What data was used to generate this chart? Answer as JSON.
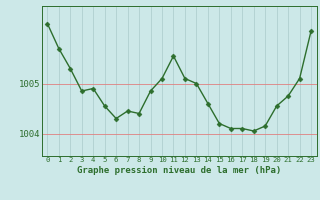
{
  "x": [
    0,
    1,
    2,
    3,
    4,
    5,
    6,
    7,
    8,
    9,
    10,
    11,
    12,
    13,
    14,
    15,
    16,
    17,
    18,
    19,
    20,
    21,
    22,
    23
  ],
  "y": [
    1006.2,
    1005.7,
    1005.3,
    1004.85,
    1004.9,
    1004.55,
    1004.3,
    1004.45,
    1004.4,
    1004.85,
    1005.1,
    1005.55,
    1005.1,
    1005.0,
    1004.6,
    1004.2,
    1004.1,
    1004.1,
    1004.05,
    1004.15,
    1004.55,
    1004.75,
    1005.1,
    1006.05
  ],
  "line_color": "#2d6e2d",
  "marker": "D",
  "marker_size": 2.5,
  "line_width": 1.0,
  "background_color": "#cce8e8",
  "plot_bg_color": "#cce8e8",
  "grid_color_v": "#b0d0d0",
  "grid_color_h": "#e08080",
  "xlabel": "Graphe pression niveau de la mer (hPa)",
  "xlabel_color": "#2d6e2d",
  "tick_label_color": "#2d6e2d",
  "ylim": [
    1003.55,
    1006.55
  ],
  "xlim": [
    -0.5,
    23.5
  ],
  "ytick_values": [
    1004,
    1005
  ],
  "ytick_labels": [
    "1004",
    "1005"
  ],
  "xtick_labels": [
    "0",
    "1",
    "2",
    "3",
    "4",
    "5",
    "6",
    "7",
    "8",
    "9",
    "10",
    "11",
    "12",
    "13",
    "14",
    "15",
    "16",
    "17",
    "18",
    "19",
    "20",
    "21",
    "22",
    "23"
  ]
}
